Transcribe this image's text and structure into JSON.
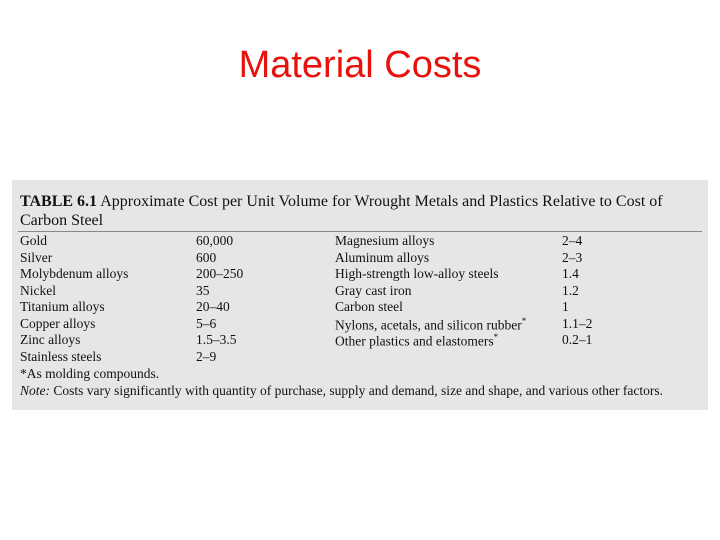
{
  "title": "Material Costs",
  "table": {
    "caption": {
      "label": "TABLE 6.1",
      "text": "Approximate Cost per Unit Volume for Wrought Metals and Plastics Relative to Cost of Carbon Steel"
    },
    "left_rows": [
      [
        "Gold",
        "60,000"
      ],
      [
        "Silver",
        "600"
      ],
      [
        "Molybdenum alloys",
        "200–250"
      ],
      [
        "Nickel",
        "35"
      ],
      [
        "Titanium alloys",
        "20–40"
      ],
      [
        "Copper alloys",
        "5–6"
      ],
      [
        "Zinc alloys",
        "1.5–3.5"
      ],
      [
        "Stainless steels",
        "2–9"
      ]
    ],
    "right_rows": [
      [
        "Magnesium alloys",
        "2–4"
      ],
      [
        "Aluminum alloys",
        "2–3"
      ],
      [
        "High-strength low-alloy steels",
        "1.4"
      ],
      [
        "Gray cast iron",
        "1.2"
      ],
      [
        "Carbon steel",
        "1"
      ],
      [
        "Nylons, acetals, and silicon rubber",
        "1.1–2",
        "*"
      ],
      [
        "Other plastics and elastomers",
        "0.2–1",
        "*"
      ]
    ],
    "footnote": "*As molding compounds.",
    "note": {
      "label": "Note:",
      "text": "Costs vary significantly with quantity of purchase, supply and demand, size and shape, and various other factors."
    }
  }
}
